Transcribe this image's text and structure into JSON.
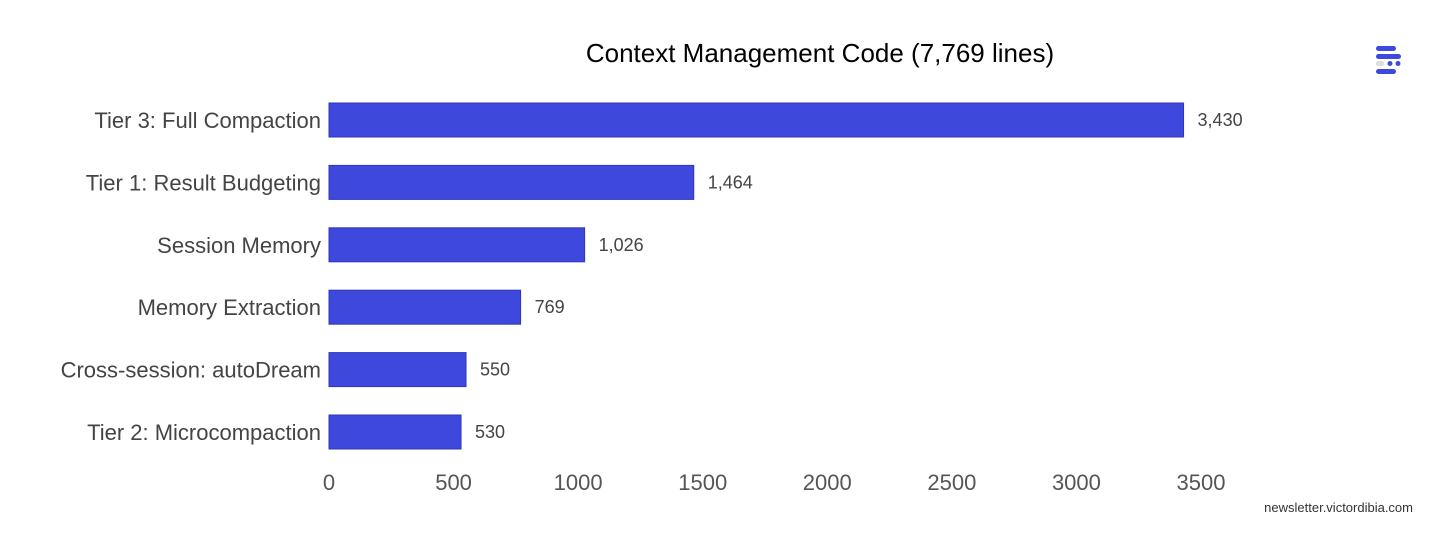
{
  "chart_data": {
    "type": "bar",
    "orientation": "horizontal",
    "title": "Context Management Code (7,769 lines)",
    "categories": [
      "Tier 3: Full Compaction",
      "Tier 1: Result Budgeting",
      "Session Memory",
      "Memory Extraction",
      "Cross-session: autoDream",
      "Tier 2: Microcompaction"
    ],
    "values": [
      3430,
      1464,
      1026,
      769,
      550,
      530
    ],
    "data_labels": [
      "3,430",
      "1,464",
      "1,026",
      "769",
      "550",
      "530"
    ],
    "xlabel": "",
    "ylabel": "",
    "xlim": [
      0,
      3500
    ],
    "xticks": [
      0,
      500,
      1000,
      1500,
      2000,
      2500,
      3000,
      3500
    ],
    "grid": false,
    "legend": "none",
    "colors": {
      "bar": "#3f48dc",
      "bar_border": "#2f36b8"
    }
  },
  "source": "newsletter.victordibia.com",
  "logo_icon": "datawrapper-logo-icon"
}
